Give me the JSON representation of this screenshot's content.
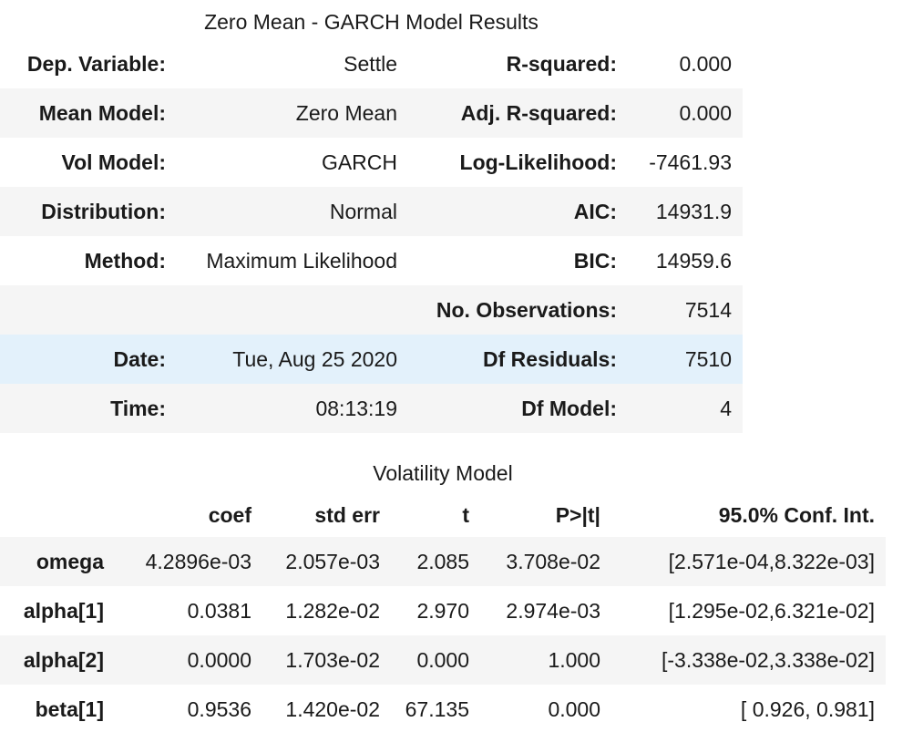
{
  "summary": {
    "title": "Zero Mean - GARCH Model Results",
    "rows": [
      {
        "label1": "Dep. Variable:",
        "value1": "Settle",
        "label2": "R-squared:",
        "value2": "0.000"
      },
      {
        "label1": "Mean Model:",
        "value1": "Zero Mean",
        "label2": "Adj. R-squared:",
        "value2": "0.000"
      },
      {
        "label1": "Vol Model:",
        "value1": "GARCH",
        "label2": "Log-Likelihood:",
        "value2": "-7461.93"
      },
      {
        "label1": "Distribution:",
        "value1": "Normal",
        "label2": "AIC:",
        "value2": "14931.9"
      },
      {
        "label1": "Method:",
        "value1": "Maximum Likelihood",
        "label2": "BIC:",
        "value2": "14959.6"
      },
      {
        "label1": "",
        "value1": "",
        "label2": "No. Observations:",
        "value2": "7514"
      },
      {
        "label1": "Date:",
        "value1": "Tue, Aug 25 2020",
        "label2": "Df Residuals:",
        "value2": "7510"
      },
      {
        "label1": "Time:",
        "value1": "08:13:19",
        "label2": "Df Model:",
        "value2": "4"
      }
    ]
  },
  "volatility": {
    "title": "Volatility Model",
    "headers": [
      "",
      "coef",
      "std err",
      "t",
      "P>|t|",
      "95.0% Conf. Int."
    ],
    "rows": [
      {
        "name": "omega",
        "coef": "4.2896e-03",
        "std_err": "2.057e-03",
        "t": "2.085",
        "p": "3.708e-02",
        "ci": "[2.571e-04,8.322e-03]"
      },
      {
        "name": "alpha[1]",
        "coef": "0.0381",
        "std_err": "1.282e-02",
        "t": "2.970",
        "p": "2.974e-03",
        "ci": "[1.295e-02,6.321e-02]"
      },
      {
        "name": "alpha[2]",
        "coef": "0.0000",
        "std_err": "1.703e-02",
        "t": "0.000",
        "p": "1.000",
        "ci": "[-3.338e-02,3.338e-02]"
      },
      {
        "name": "beta[1]",
        "coef": "0.9536",
        "std_err": "1.420e-02",
        "t": "67.135",
        "p": "0.000",
        "ci": "[ 0.926, 0.981]"
      }
    ]
  },
  "colors": {
    "stripe": "#f5f5f5",
    "hover_highlight": "#e3f1fb",
    "text": "#1a1a1a"
  }
}
